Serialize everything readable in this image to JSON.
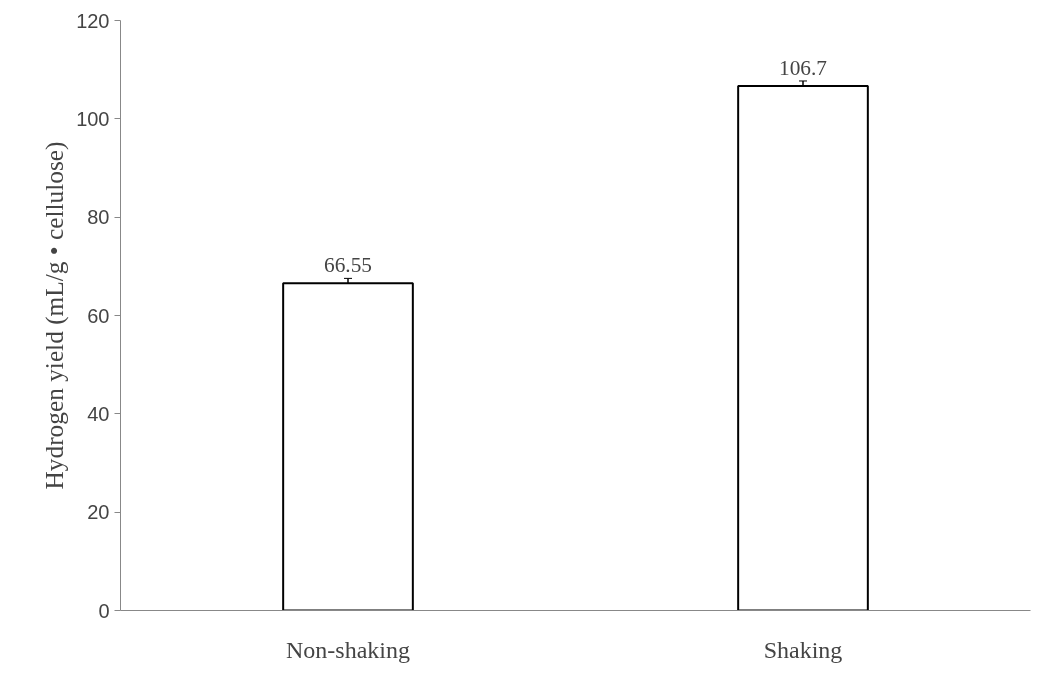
{
  "chart_data": {
    "type": "bar",
    "ylabel": "Hydrogen yield (mL/g • cellulose)",
    "categories": [
      "Non-shaking",
      "Shaking"
    ],
    "values": [
      66.55,
      106.7
    ],
    "errors": [
      1,
      1
    ],
    "color": "#ffffff",
    "ylim": [
      0,
      120
    ],
    "yticks": [
      0,
      20,
      40,
      60,
      80,
      100,
      120
    ],
    "data_labels": true,
    "grid": false
  }
}
